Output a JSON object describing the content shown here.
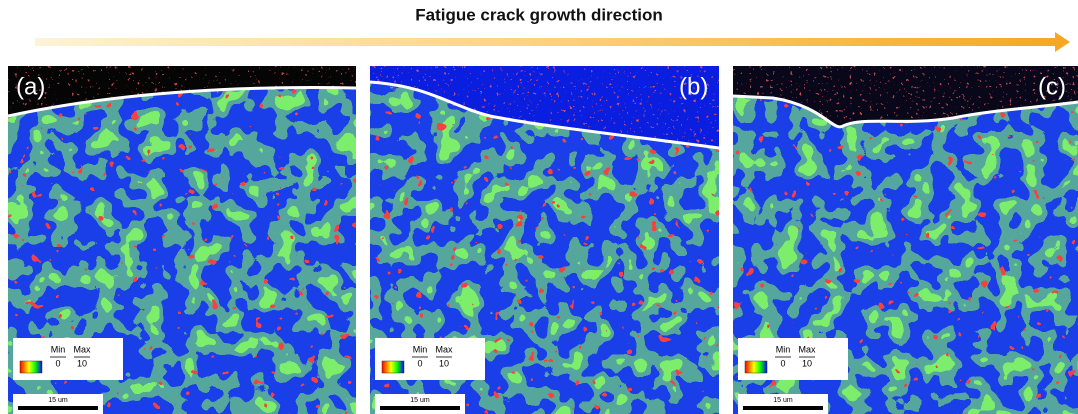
{
  "title": "Fatigue crack growth direction",
  "panels": [
    {
      "label": "(a)",
      "legend": {
        "min_label": "Min",
        "max_label": "Max",
        "min": 0,
        "max": 10
      },
      "scale_bar": "15 um"
    },
    {
      "label": "(b)",
      "legend": {
        "min_label": "Min",
        "max_label": "Max",
        "min": 0,
        "max": 10
      },
      "scale_bar": "15 um"
    },
    {
      "label": "(c)",
      "legend": {
        "min_label": "Min",
        "max_label": "Max",
        "min": 0,
        "max": 10
      },
      "scale_bar": "15 um"
    }
  ]
}
